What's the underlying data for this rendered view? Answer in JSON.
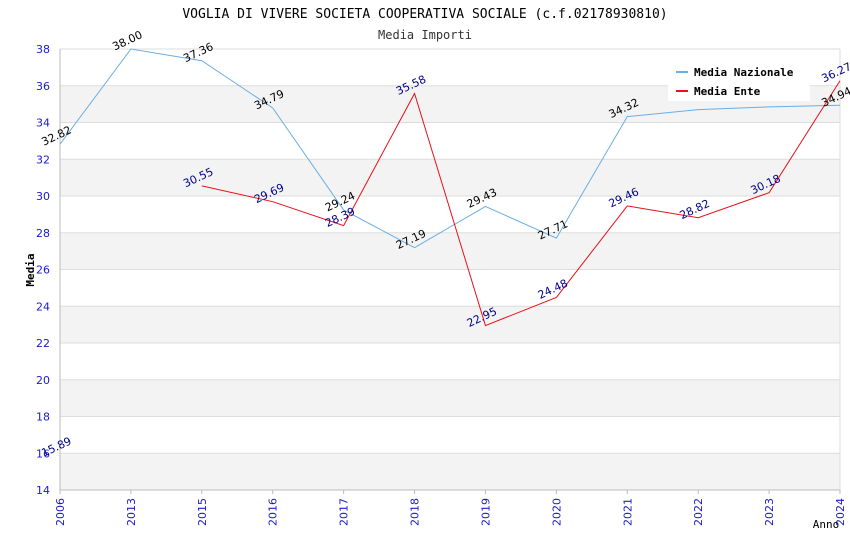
{
  "chart_data": {
    "type": "line",
    "title": "VOGLIA DI VIVERE SOCIETA COOPERATIVA SOCIALE (c.f.02178930810)",
    "subtitle": "Media Importi",
    "xlabel": "Anno",
    "ylabel": "Media",
    "categories": [
      "2006",
      "2013",
      "2015",
      "2016",
      "2017",
      "2018",
      "2019",
      "2020",
      "2021",
      "2022",
      "2023",
      "2024"
    ],
    "ylim": [
      14,
      38
    ],
    "yticks": [
      14,
      16,
      18,
      20,
      22,
      24,
      26,
      28,
      30,
      32,
      34,
      36,
      38
    ],
    "grid": true,
    "legend_position": "top-right",
    "series": [
      {
        "name": "Media Nazionale",
        "color": "#6aaee6",
        "label_color": "#000000",
        "values": [
          32.82,
          38.0,
          37.36,
          34.79,
          29.24,
          27.19,
          29.43,
          27.71,
          34.32,
          34.7,
          34.85,
          34.94
        ],
        "labels": [
          "32.82",
          "38.00",
          "37.36",
          "34.79",
          "29.24",
          "27.19",
          "29.43",
          "27.71",
          "34.32",
          "",
          "",
          "34.94"
        ]
      },
      {
        "name": "Media Ente",
        "color": "#e8101a",
        "label_color": "#00008b",
        "values": [
          15.89,
          null,
          30.55,
          29.69,
          28.39,
          35.58,
          22.95,
          24.48,
          29.46,
          28.82,
          30.18,
          36.27
        ],
        "labels": [
          "15.89",
          "",
          "30.55",
          "29.69",
          "28.39",
          "35.58",
          "22.95",
          "24.48",
          "29.46",
          "28.82",
          "30.18",
          "36.27"
        ]
      }
    ]
  }
}
